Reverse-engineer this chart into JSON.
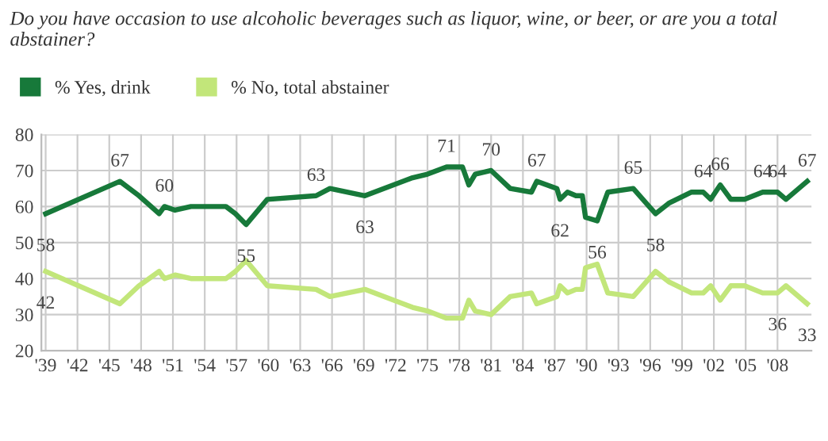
{
  "chart_data": {
    "type": "line",
    "title": "Do you have occasion to use alcoholic beverages such as liquor, wine, or beer, or are you a total abstainer?",
    "x": [
      1939,
      1946,
      1947.8,
      1949.7,
      1950.2,
      1951.2,
      1952.7,
      1956,
      1956.9,
      1957.9,
      1959.9,
      1964.5,
      1965.8,
      1969.1,
      1973.6,
      1975,
      1976.8,
      1978.3,
      1978.9,
      1979.5,
      1981,
      1982.8,
      1984.8,
      1985.3,
      1987.2,
      1987.5,
      1988.2,
      1989,
      1989.6,
      1989.9,
      1991,
      1992,
      1994.4,
      1996.5,
      1997.8,
      1999.9,
      2001,
      2001.7,
      2002.6,
      2003.6,
      2004.9,
      2006.6,
      2008,
      2008.8,
      2010.8
    ],
    "series": [
      {
        "name": "% Yes, drink",
        "color": "#17793a",
        "values": [
          58,
          67,
          63,
          58,
          60,
          59,
          60,
          60,
          58,
          55,
          62,
          63,
          65,
          63,
          68,
          69,
          71,
          71,
          66,
          69,
          70,
          65,
          64,
          67,
          65,
          62,
          64,
          63,
          63,
          57,
          56,
          64,
          65,
          58,
          61,
          64,
          64,
          62,
          66,
          62,
          62,
          64,
          64,
          62,
          67
        ]
      },
      {
        "name": "% No, total abstainer",
        "color": "#c2e67a",
        "values": [
          42,
          33,
          38,
          42,
          40,
          41,
          40,
          40,
          42,
          45,
          38,
          37,
          35,
          37,
          32,
          31,
          29,
          29,
          34,
          31,
          30,
          35,
          36,
          33,
          35,
          38,
          36,
          37,
          37,
          43,
          44,
          36,
          35,
          42,
          39,
          36,
          36,
          38,
          34,
          38,
          38,
          36,
          36,
          38,
          33
        ]
      }
    ],
    "xlim": [
      1938.6,
      2011.2
    ],
    "xticks": [
      {
        "value": 1939,
        "label": "'39"
      },
      {
        "value": 1942,
        "label": "'42"
      },
      {
        "value": 1945,
        "label": "'45"
      },
      {
        "value": 1948,
        "label": "'48"
      },
      {
        "value": 1951,
        "label": "'51"
      },
      {
        "value": 1954,
        "label": "'54"
      },
      {
        "value": 1957,
        "label": "'57"
      },
      {
        "value": 1960,
        "label": "'60"
      },
      {
        "value": 1963,
        "label": "'63"
      },
      {
        "value": 1966,
        "label": "'66"
      },
      {
        "value": 1969,
        "label": "'69"
      },
      {
        "value": 1972,
        "label": "'72"
      },
      {
        "value": 1975,
        "label": "'75"
      },
      {
        "value": 1978,
        "label": "'78"
      },
      {
        "value": 1981,
        "label": "'81"
      },
      {
        "value": 1984,
        "label": "'84"
      },
      {
        "value": 1987,
        "label": "'87"
      },
      {
        "value": 1990,
        "label": "'90"
      },
      {
        "value": 1993,
        "label": "'93"
      },
      {
        "value": 1996,
        "label": "'96"
      },
      {
        "value": 1999,
        "label": "'99"
      },
      {
        "value": 2002,
        "label": "'02"
      },
      {
        "value": 2005,
        "label": "'05"
      },
      {
        "value": 2008,
        "label": "'08"
      }
    ],
    "ylim": [
      20,
      80
    ],
    "yticks": [
      20,
      30,
      40,
      50,
      60,
      70,
      80
    ],
    "grid": true,
    "legend": "top left",
    "marker": "none",
    "line_style": "solid",
    "annotations": [
      {
        "text": "58",
        "x": 1939,
        "y": 58
      },
      {
        "text": "67",
        "x": 1946,
        "y": 67
      },
      {
        "text": "60",
        "x": 1950.2,
        "y": 60
      },
      {
        "text": "55",
        "x": 1957.9,
        "y": 55
      },
      {
        "text": "63",
        "x": 1964.5,
        "y": 63
      },
      {
        "text": "63",
        "x": 1969.1,
        "y": 63
      },
      {
        "text": "71",
        "x": 1976.8,
        "y": 71
      },
      {
        "text": "70",
        "x": 1981,
        "y": 70
      },
      {
        "text": "67",
        "x": 1985.3,
        "y": 67
      },
      {
        "text": "62",
        "x": 1987.5,
        "y": 62
      },
      {
        "text": "56",
        "x": 1991,
        "y": 56
      },
      {
        "text": "65",
        "x": 1994.4,
        "y": 65
      },
      {
        "text": "58",
        "x": 1996.5,
        "y": 58
      },
      {
        "text": "64",
        "x": 2001,
        "y": 64
      },
      {
        "text": "66",
        "x": 2002.6,
        "y": 66
      },
      {
        "text": "64",
        "x": 2006.6,
        "y": 64
      },
      {
        "text": "64",
        "x": 2008,
        "y": 64
      },
      {
        "text": "67",
        "x": 2010.8,
        "y": 67
      },
      {
        "text": "42",
        "x": 1939,
        "y": 42
      },
      {
        "text": "36",
        "x": 2008,
        "y": 36
      },
      {
        "text": "33",
        "x": 2010.8,
        "y": 33
      }
    ]
  }
}
